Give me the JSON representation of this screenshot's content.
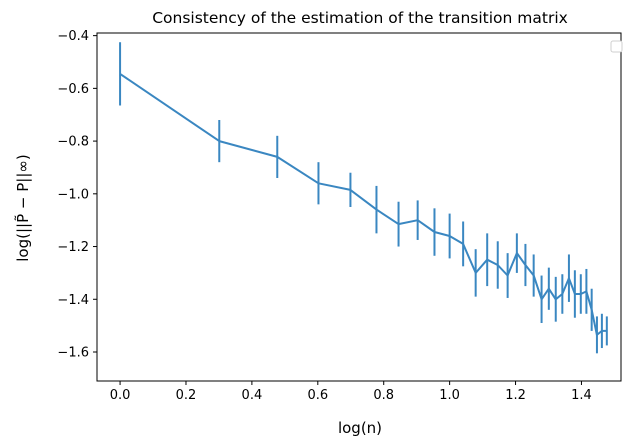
{
  "chart_data": {
    "type": "line",
    "title": "Consistency of the estimation of the transition matrix",
    "xlabel": "log(n)",
    "ylabel": "log(||P̃ − P||∞)",
    "xlim": [
      -0.07,
      1.52
    ],
    "ylim": [
      -1.71,
      -0.39
    ],
    "xticks": [
      0.0,
      0.2,
      0.4,
      0.6,
      0.8,
      1.0,
      1.2,
      1.4
    ],
    "xtick_labels": [
      "0.0",
      "0.2",
      "0.4",
      "0.6",
      "0.8",
      "1.0",
      "1.2",
      "1.4"
    ],
    "yticks": [
      -0.4,
      -0.6,
      -0.8,
      -1.0,
      -1.2,
      -1.4,
      -1.6
    ],
    "ytick_labels": [
      "−0.4",
      "−0.6",
      "−0.8",
      "−1.0",
      "−1.2",
      "−1.4",
      "−1.6"
    ],
    "grid": false,
    "legend": "top-right (empty)",
    "color": "#3a87c1",
    "series": [
      {
        "error_bars": true,
        "points": [
          {
            "x": 0.0,
            "y": -0.545,
            "err": 0.12
          },
          {
            "x": 0.301,
            "y": -0.8,
            "err": 0.08
          },
          {
            "x": 0.477,
            "y": -0.86,
            "err": 0.08
          },
          {
            "x": 0.602,
            "y": -0.96,
            "err": 0.08
          },
          {
            "x": 0.699,
            "y": -0.985,
            "err": 0.065
          },
          {
            "x": 0.778,
            "y": -1.06,
            "err": 0.09
          },
          {
            "x": 0.845,
            "y": -1.115,
            "err": 0.085
          },
          {
            "x": 0.903,
            "y": -1.1,
            "err": 0.075
          },
          {
            "x": 0.954,
            "y": -1.145,
            "err": 0.09
          },
          {
            "x": 1.0,
            "y": -1.16,
            "err": 0.085
          },
          {
            "x": 1.041,
            "y": -1.19,
            "err": 0.085
          },
          {
            "x": 1.079,
            "y": -1.3,
            "err": 0.09
          },
          {
            "x": 1.114,
            "y": -1.25,
            "err": 0.1
          },
          {
            "x": 1.146,
            "y": -1.27,
            "err": 0.09
          },
          {
            "x": 1.176,
            "y": -1.31,
            "err": 0.085
          },
          {
            "x": 1.204,
            "y": -1.225,
            "err": 0.075
          },
          {
            "x": 1.23,
            "y": -1.27,
            "err": 0.08
          },
          {
            "x": 1.255,
            "y": -1.31,
            "err": 0.08
          },
          {
            "x": 1.279,
            "y": -1.4,
            "err": 0.09
          },
          {
            "x": 1.301,
            "y": -1.36,
            "err": 0.08
          },
          {
            "x": 1.322,
            "y": -1.4,
            "err": 0.085
          },
          {
            "x": 1.342,
            "y": -1.38,
            "err": 0.075
          },
          {
            "x": 1.362,
            "y": -1.32,
            "err": 0.09
          },
          {
            "x": 1.38,
            "y": -1.38,
            "err": 0.09
          },
          {
            "x": 1.398,
            "y": -1.38,
            "err": 0.075
          },
          {
            "x": 1.415,
            "y": -1.37,
            "err": 0.085
          },
          {
            "x": 1.431,
            "y": -1.44,
            "err": 0.08
          },
          {
            "x": 1.447,
            "y": -1.535,
            "err": 0.07
          },
          {
            "x": 1.462,
            "y": -1.52,
            "err": 0.065
          },
          {
            "x": 1.477,
            "y": -1.52,
            "err": 0.055
          }
        ]
      }
    ]
  }
}
